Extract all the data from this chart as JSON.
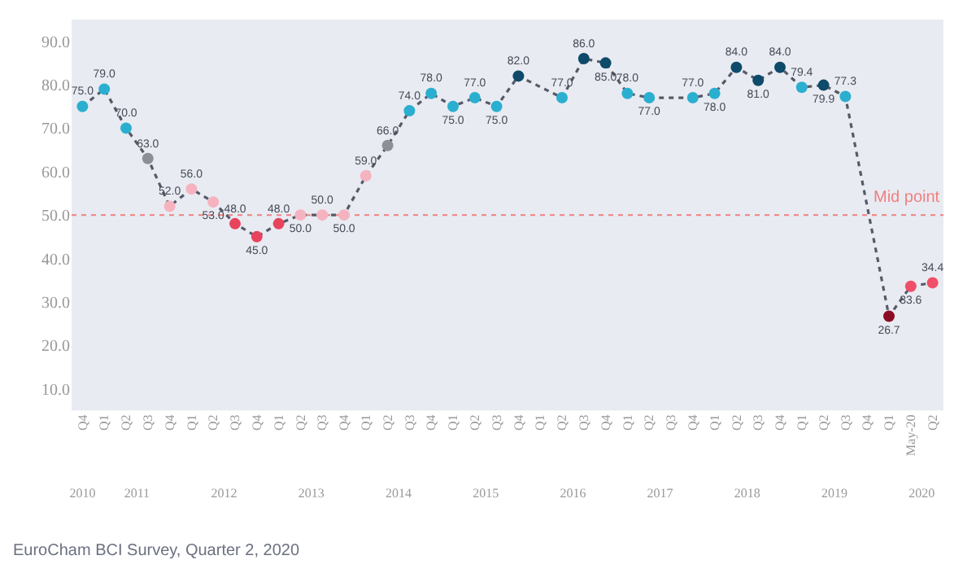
{
  "chart_data": {
    "type": "line",
    "categories": [
      "Q4",
      "Q1",
      "Q2",
      "Q3",
      "Q4",
      "Q1",
      "Q2",
      "Q3",
      "Q4",
      "Q1",
      "Q2",
      "Q3",
      "Q4",
      "Q1",
      "Q2",
      "Q3",
      "Q4",
      "Q1",
      "Q2",
      "Q3",
      "Q4",
      "Q1",
      "Q2",
      "Q3",
      "Q4",
      "Q1",
      "Q2",
      "Q3",
      "Q4",
      "Q1",
      "Q2",
      "Q3",
      "Q4",
      "Q1",
      "Q2",
      "Q3",
      "Q4",
      "Q1",
      "May-20",
      "Q2"
    ],
    "x2lim": [
      2010.25,
      2020.25
    ],
    "x2ticks": [
      {
        "value": 2010.375,
        "label": "2010"
      },
      2011,
      2012,
      2013,
      2014,
      2015,
      2016,
      2017,
      2018,
      2019,
      2020
    ],
    "series": [
      {
        "color": "#555a66",
        "values": [
          75.0,
          79.0,
          70.0,
          63.0,
          52.0,
          56.0,
          53.0,
          48.0,
          45.0,
          48.0,
          50.0,
          50.0,
          50.0,
          59.0,
          66.0,
          74.0,
          78.0,
          75.0,
          77.0,
          75.0,
          82.0,
          null,
          77.0,
          86.0,
          85.0,
          78.0,
          77.0,
          null,
          77.0,
          78.0,
          84.0,
          81.0,
          84.0,
          79.4,
          79.9,
          77.3,
          null,
          26.7,
          33.6,
          34.4
        ],
        "value_labels": [
          "75.0",
          "79.0",
          "70.0",
          "63.0",
          "52.0",
          "56.0",
          "53.0",
          "48.0",
          "45.0",
          "48.0",
          "50.0",
          "50.0",
          "50.0",
          "59.0",
          "66.0",
          "74.0",
          "78.0",
          "75.0",
          "77.0",
          "75.0",
          "82.0",
          null,
          "77.0",
          "86.0",
          "85.0",
          "78.0",
          "77.0",
          null,
          "77.0",
          "78.0",
          "84.0",
          "81.0",
          "84.0",
          "79.4",
          "79.9",
          "77.3",
          null,
          "26.7",
          "33.6",
          "34.4"
        ],
        "colors": [
          "#2bafd0",
          "#2bafd0",
          "#2bafd0",
          "#8d8f96",
          "#f5b3c0",
          "#f5b3c0",
          "#f5b3c0",
          "#e8435d",
          "#e8435d",
          "#e8435d",
          "#f5b3c0",
          "#f5b3c0",
          "#f5b3c0",
          "#f5b3c0",
          "#8d8f96",
          "#2bafd0",
          "#2bafd0",
          "#2bafd0",
          "#2bafd0",
          "#2bafd0",
          "#0e4a6a",
          null,
          "#2bafd0",
          "#0e4a6a",
          "#0e4a6a",
          "#2bafd0",
          "#2bafd0",
          null,
          "#2bafd0",
          "#2bafd0",
          "#0e4a6a",
          "#0e4a6a",
          "#0e4a6a",
          "#2bafd0",
          "#0e4a6a",
          "#2bafd0",
          null,
          "#8c0c24",
          "#ef4f68",
          "#ef4f68"
        ]
      }
    ],
    "ylim": [
      5,
      95
    ],
    "yticks": [
      {
        "value": 10,
        "label": "10.0"
      },
      {
        "value": 20,
        "label": "20.0"
      },
      {
        "value": 30,
        "label": "30.0"
      },
      {
        "value": 40,
        "label": "40.0"
      },
      {
        "value": 50,
        "label": "50.0"
      },
      {
        "value": 60,
        "label": "60.0"
      },
      {
        "value": 70,
        "label": "70.0"
      },
      {
        "value": 80,
        "label": "80.0"
      },
      {
        "value": 90,
        "label": "90.0"
      }
    ],
    "ref_lines": [
      {
        "axis": "y",
        "value": 50,
        "label": "Mid point",
        "color": "#f08080",
        "line_style": "dotted"
      }
    ],
    "marker": "circle",
    "line_style": "dotted",
    "grid": false,
    "annotations": [
      "EuroCham BCI Survey, Quarter 2, 2020"
    ]
  }
}
